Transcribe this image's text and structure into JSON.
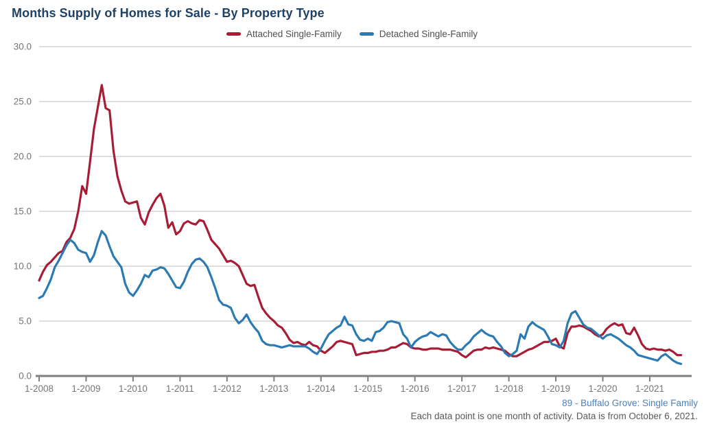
{
  "title": "Months Supply of Homes for Sale - By Property Type",
  "legend": [
    {
      "label": "Attached Single-Family",
      "color": "#A81D35"
    },
    {
      "label": "Detached Single-Family",
      "color": "#2B7BB2"
    }
  ],
  "footer": {
    "source": "89 - Buffalo Grove: Single Family",
    "note": "Each data point is one month of activity. Data is from October 6, 2021."
  },
  "colors": {
    "title": "#1E4164",
    "legend_text": "#4F4F4F",
    "grid": "#CBCBCB",
    "axis": "#7F7F7F",
    "axis_text": "#757575",
    "source_link": "#4B80B8",
    "note_text": "#595959"
  },
  "chart_data": {
    "type": "line",
    "title": "Months Supply of Homes for Sale - By Property Type",
    "xlabel": "",
    "ylabel": "",
    "x_monthly_start": "1-2008",
    "x_monthly_end": "9-2021",
    "x_tick_labels": [
      "1-2008",
      "1-2009",
      "1-2010",
      "1-2011",
      "1-2012",
      "1-2013",
      "1-2014",
      "1-2015",
      "1-2016",
      "1-2017",
      "1-2018",
      "1-2019",
      "1-2020",
      "1-2021"
    ],
    "y_ticks": [
      0,
      5,
      10,
      15,
      20,
      25,
      30
    ],
    "y_tick_labels": [
      "0.0",
      "5.0",
      "10.0",
      "15.0",
      "20.0",
      "25.0",
      "30.0"
    ],
    "ylim": [
      0,
      30
    ],
    "grid": "horizontal",
    "legend_position": "top",
    "series": [
      {
        "name": "Attached Single-Family",
        "id": "attached-single-family",
        "color": "#A81D35",
        "values": [
          8.7,
          9.5,
          10.1,
          10.4,
          10.8,
          11.2,
          11.4,
          12.2,
          12.6,
          13.4,
          15.0,
          17.3,
          16.6,
          19.5,
          22.5,
          24.5,
          26.5,
          24.4,
          24.2,
          20.5,
          18.2,
          16.9,
          15.9,
          15.7,
          15.8,
          15.9,
          14.4,
          13.8,
          14.9,
          15.6,
          16.2,
          16.6,
          15.5,
          13.5,
          14.0,
          12.9,
          13.2,
          13.9,
          14.1,
          13.9,
          13.8,
          14.2,
          14.1,
          13.3,
          12.4,
          12.0,
          11.6,
          11.0,
          10.4,
          10.5,
          10.3,
          10.0,
          9.2,
          8.4,
          8.2,
          8.3,
          7.2,
          6.2,
          5.7,
          5.3,
          5.0,
          4.6,
          4.4,
          3.9,
          3.3,
          3.0,
          3.1,
          2.9,
          2.8,
          3.1,
          2.8,
          2.7,
          2.3,
          2.1,
          2.4,
          2.7,
          3.1,
          3.2,
          3.1,
          3.0,
          2.9,
          1.9,
          2.0,
          2.1,
          2.1,
          2.2,
          2.2,
          2.3,
          2.3,
          2.4,
          2.6,
          2.6,
          2.8,
          3.0,
          2.9,
          2.6,
          2.5,
          2.5,
          2.4,
          2.4,
          2.5,
          2.5,
          2.5,
          2.4,
          2.4,
          2.4,
          2.3,
          2.2,
          1.9,
          1.7,
          2.0,
          2.3,
          2.4,
          2.4,
          2.6,
          2.5,
          2.6,
          2.5,
          2.4,
          2.3,
          2.0,
          1.8,
          1.8,
          2.0,
          2.2,
          2.4,
          2.5,
          2.7,
          2.9,
          3.1,
          3.1,
          3.2,
          3.4,
          2.7,
          2.5,
          3.9,
          4.5,
          4.5,
          4.6,
          4.5,
          4.3,
          4.1,
          3.8,
          3.6,
          3.8,
          4.3,
          4.6,
          4.8,
          4.6,
          4.7,
          3.9,
          3.8,
          4.4,
          3.7,
          2.9,
          2.5,
          2.4,
          2.5,
          2.4,
          2.4,
          2.3,
          2.4,
          2.2,
          1.9,
          1.9
        ]
      },
      {
        "name": "Detached Single-Family",
        "id": "detached-single-family",
        "color": "#2B7BB2",
        "values": [
          7.1,
          7.3,
          8.0,
          8.8,
          9.9,
          10.5,
          11.2,
          11.9,
          12.4,
          12.1,
          11.5,
          11.3,
          11.2,
          10.4,
          11.0,
          12.2,
          13.2,
          12.8,
          11.8,
          10.9,
          10.4,
          9.9,
          8.4,
          7.6,
          7.3,
          7.8,
          8.4,
          9.2,
          9.0,
          9.6,
          9.7,
          9.9,
          9.8,
          9.3,
          8.7,
          8.1,
          8.0,
          8.6,
          9.5,
          10.2,
          10.6,
          10.7,
          10.4,
          9.9,
          9.0,
          8.0,
          6.9,
          6.5,
          6.4,
          6.2,
          5.3,
          4.8,
          5.1,
          5.6,
          4.9,
          4.4,
          4.0,
          3.2,
          2.9,
          2.8,
          2.8,
          2.7,
          2.6,
          2.7,
          2.8,
          2.7,
          2.7,
          2.7,
          2.7,
          2.5,
          2.2,
          2.0,
          2.5,
          3.2,
          3.8,
          4.1,
          4.4,
          4.6,
          5.4,
          4.7,
          4.6,
          3.8,
          3.3,
          3.2,
          3.4,
          3.2,
          4.0,
          4.1,
          4.4,
          4.9,
          5.0,
          4.9,
          4.8,
          3.8,
          3.4,
          2.6,
          3.1,
          3.4,
          3.6,
          3.7,
          4.0,
          3.8,
          3.6,
          3.8,
          3.7,
          3.1,
          2.7,
          2.4,
          2.4,
          2.8,
          3.1,
          3.6,
          3.9,
          4.2,
          3.9,
          3.7,
          3.6,
          3.1,
          2.7,
          2.1,
          1.8,
          2.0,
          2.3,
          3.8,
          3.4,
          4.5,
          4.9,
          4.6,
          4.4,
          4.2,
          3.6,
          2.9,
          2.8,
          2.6,
          3.2,
          4.8,
          5.7,
          5.9,
          5.3,
          4.7,
          4.4,
          4.3,
          4.0,
          3.7,
          3.4,
          3.7,
          3.8,
          3.6,
          3.4,
          3.1,
          2.8,
          2.6,
          2.3,
          1.9,
          1.8,
          1.7,
          1.6,
          1.5,
          1.4,
          1.8,
          2.0,
          1.7,
          1.4,
          1.2,
          1.1
        ]
      }
    ]
  }
}
